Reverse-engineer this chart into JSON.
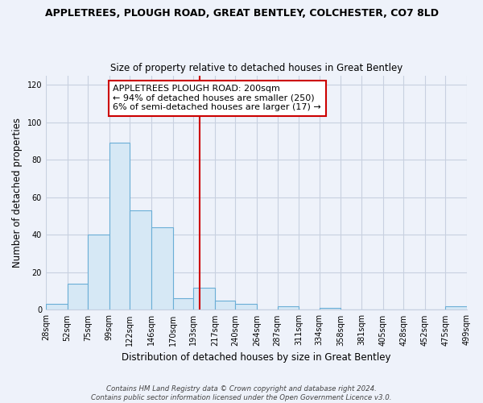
{
  "title": "APPLETREES, PLOUGH ROAD, GREAT BENTLEY, COLCHESTER, CO7 8LD",
  "subtitle": "Size of property relative to detached houses in Great Bentley",
  "xlabel": "Distribution of detached houses by size in Great Bentley",
  "ylabel": "Number of detached properties",
  "bin_edges": [
    28,
    52,
    75,
    99,
    122,
    146,
    170,
    193,
    217,
    240,
    264,
    287,
    311,
    334,
    358,
    381,
    405,
    428,
    452,
    475,
    499
  ],
  "counts": [
    3,
    14,
    40,
    89,
    53,
    44,
    6,
    12,
    5,
    3,
    0,
    2,
    0,
    1,
    0,
    0,
    0,
    0,
    0,
    2
  ],
  "bar_color": "#d6e8f5",
  "bar_edge_color": "#6aaed6",
  "vline_x": 200,
  "vline_color": "#cc0000",
  "annotation_line1": "APPLETREES PLOUGH ROAD: 200sqm",
  "annotation_line2": "← 94% of detached houses are smaller (250)",
  "annotation_line3": "6% of semi-detached houses are larger (17) →",
  "annotation_box_color": "#ffffff",
  "annotation_box_edge_color": "#cc0000",
  "ylim": [
    0,
    125
  ],
  "yticks": [
    0,
    20,
    40,
    60,
    80,
    100,
    120
  ],
  "tick_labels": [
    "28sqm",
    "52sqm",
    "75sqm",
    "99sqm",
    "122sqm",
    "146sqm",
    "170sqm",
    "193sqm",
    "217sqm",
    "240sqm",
    "264sqm",
    "287sqm",
    "311sqm",
    "334sqm",
    "358sqm",
    "381sqm",
    "405sqm",
    "428sqm",
    "452sqm",
    "475sqm",
    "499sqm"
  ],
  "footer_text": "Contains HM Land Registry data © Crown copyright and database right 2024.\nContains public sector information licensed under the Open Government Licence v3.0.",
  "bg_color": "#eef2fa",
  "plot_bg_color": "#eef2fa",
  "grid_color": "#c8d0e0",
  "title_fontsize": 9,
  "subtitle_fontsize": 8.5,
  "label_fontsize": 8.5,
  "tick_fontsize": 7,
  "annotation_fontsize": 8,
  "footer_fontsize": 6.2
}
